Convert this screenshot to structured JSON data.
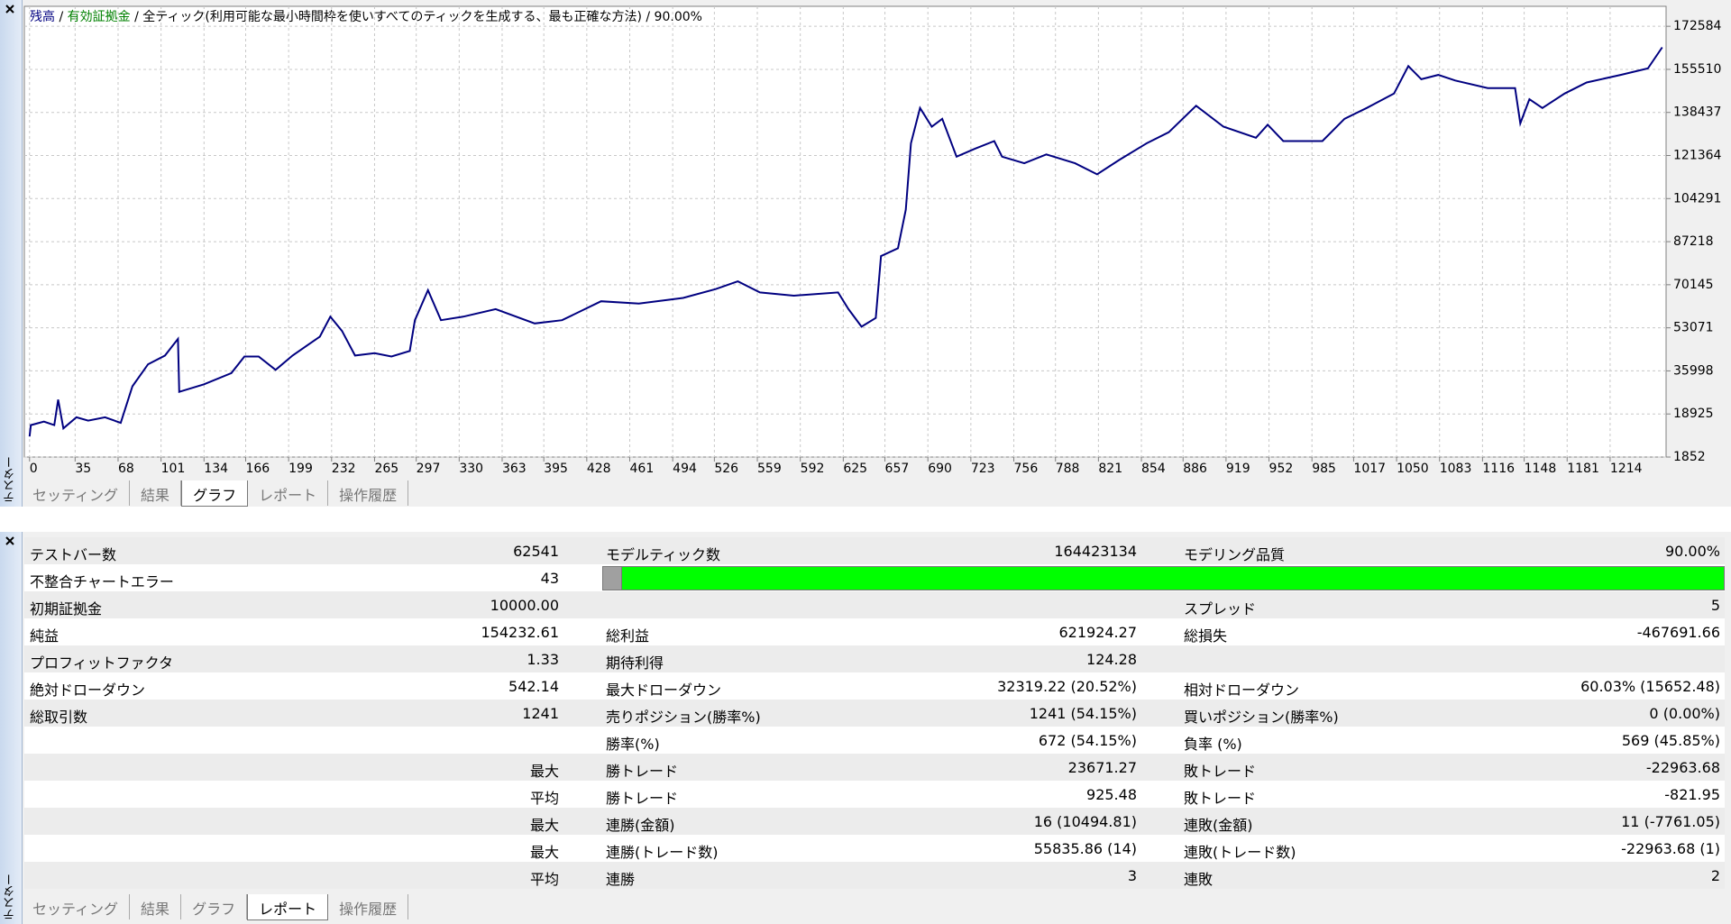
{
  "chart_data": {
    "type": "line",
    "header_parts": [
      {
        "text": "残高",
        "color": "#000080"
      },
      {
        "text": " / ",
        "color": "#000000"
      },
      {
        "text": "有効証拠金",
        "color": "#008000"
      },
      {
        "text": " / 全ティック(利用可能な最小時間枠を使いすべてのティックを生成する、最も正確な方法) / 90.00%",
        "color": "#000000"
      }
    ],
    "x": [
      0,
      1,
      11,
      19,
      22,
      26,
      36,
      45,
      58,
      70,
      79,
      91,
      104,
      114,
      115,
      134,
      155,
      165,
      176,
      189,
      202,
      223,
      231,
      240,
      250,
      265,
      278,
      292,
      296,
      306,
      316,
      333,
      358,
      388,
      409,
      439,
      468,
      502,
      527,
      544,
      561,
      587,
      621,
      629,
      639,
      650,
      654,
      667,
      673,
      677,
      684,
      693,
      701,
      712,
      726,
      741,
      747,
      764,
      781,
      803,
      820,
      837,
      858,
      875,
      896,
      917,
      942,
      951,
      963,
      993,
      1010,
      1027,
      1048,
      1059,
      1069,
      1082,
      1095,
      1120,
      1141,
      1145,
      1152,
      1162,
      1179,
      1196,
      1222,
      1243,
      1254
    ],
    "series": [
      {
        "name": "残高",
        "color": "#000080",
        "values": [
          10000,
          14500,
          15900,
          14500,
          24600,
          13200,
          17600,
          16300,
          17600,
          15400,
          29900,
          38600,
          42100,
          48700,
          27700,
          30700,
          35100,
          41700,
          41700,
          36400,
          42100,
          49600,
          57500,
          51800,
          42100,
          43000,
          41700,
          43900,
          56100,
          68000,
          56100,
          57500,
          60500,
          54800,
          56100,
          63600,
          62700,
          64900,
          68400,
          71500,
          67100,
          65800,
          67100,
          60500,
          53500,
          57000,
          81500,
          84600,
          99900,
          126200,
          140200,
          132800,
          135900,
          120900,
          124000,
          127100,
          120900,
          118300,
          121800,
          118300,
          113900,
          119600,
          126200,
          130600,
          141100,
          132800,
          128400,
          133600,
          127100,
          127100,
          135900,
          140200,
          145900,
          156800,
          151600,
          153300,
          151100,
          148100,
          148100,
          134100,
          143700,
          140200,
          145900,
          150300,
          153300,
          155900,
          164233
        ]
      }
    ],
    "xlim": [
      -4,
      1257
    ],
    "ylim": [
      1852,
      180500
    ],
    "xticks": [
      0,
      35,
      68,
      101,
      134,
      166,
      199,
      232,
      265,
      297,
      330,
      363,
      395,
      428,
      461,
      494,
      526,
      559,
      592,
      625,
      657,
      690,
      723,
      756,
      788,
      821,
      854,
      886,
      919,
      952,
      985,
      1017,
      1050,
      1083,
      1116,
      1148,
      1181,
      1214
    ],
    "yticks": [
      1852,
      18925,
      35998,
      53071,
      70145,
      87218,
      104291,
      121364,
      138437,
      155510,
      172584
    ],
    "grid": true
  },
  "side_label": "テスター",
  "top_tabs": {
    "items": [
      "セッティング",
      "結果",
      "グラフ",
      "レポート",
      "操作履歴"
    ],
    "active": 2
  },
  "report": {
    "rows": [
      [
        "テストバー数",
        "62541",
        "モデルティック数",
        "164423134",
        "モデリング品質",
        "90.00%"
      ],
      [
        "不整合チャートエラー",
        "43"
      ],
      [
        "初期証拠金",
        "10000.00",
        null,
        null,
        "スプレッド",
        "5"
      ],
      [
        "純益",
        "154232.61",
        "総利益",
        "621924.27",
        "総損失",
        "-467691.66"
      ],
      [
        "プロフィットファクタ",
        "1.33",
        "期待利得",
        "124.28",
        null,
        null
      ],
      [
        "絶対ドローダウン",
        "542.14",
        "最大ドローダウン",
        "32319.22 (20.52%)",
        "相対ドローダウン",
        "60.03% (15652.48)"
      ],
      [
        "総取引数",
        "1241",
        "売りポジション(勝率%)",
        "1241 (54.15%)",
        "買いポジション(勝率%)",
        "0 (0.00%)"
      ],
      [
        null,
        null,
        "勝率(%)",
        "672 (54.15%)",
        "負率 (%)",
        "569 (45.85%)"
      ],
      [
        null,
        "最大",
        "勝トレード",
        "23671.27",
        "敗トレード",
        "-22963.68"
      ],
      [
        null,
        "平均",
        "勝トレード",
        "925.48",
        "敗トレード",
        "-821.95"
      ],
      [
        null,
        "最大",
        "連勝(金額)",
        "16 (10494.81)",
        "連敗(金額)",
        "11 (-7761.05)"
      ],
      [
        null,
        "最大",
        "連勝(トレード数)",
        "55835.86 (14)",
        "連敗(トレード数)",
        "-22963.68 (1)"
      ],
      [
        null,
        "平均",
        "連勝",
        "3",
        "連敗",
        "2"
      ]
    ]
  },
  "bottom_tabs": {
    "items": [
      "セッティング",
      "結果",
      "グラフ",
      "レポート",
      "操作履歴"
    ],
    "active": 3
  }
}
